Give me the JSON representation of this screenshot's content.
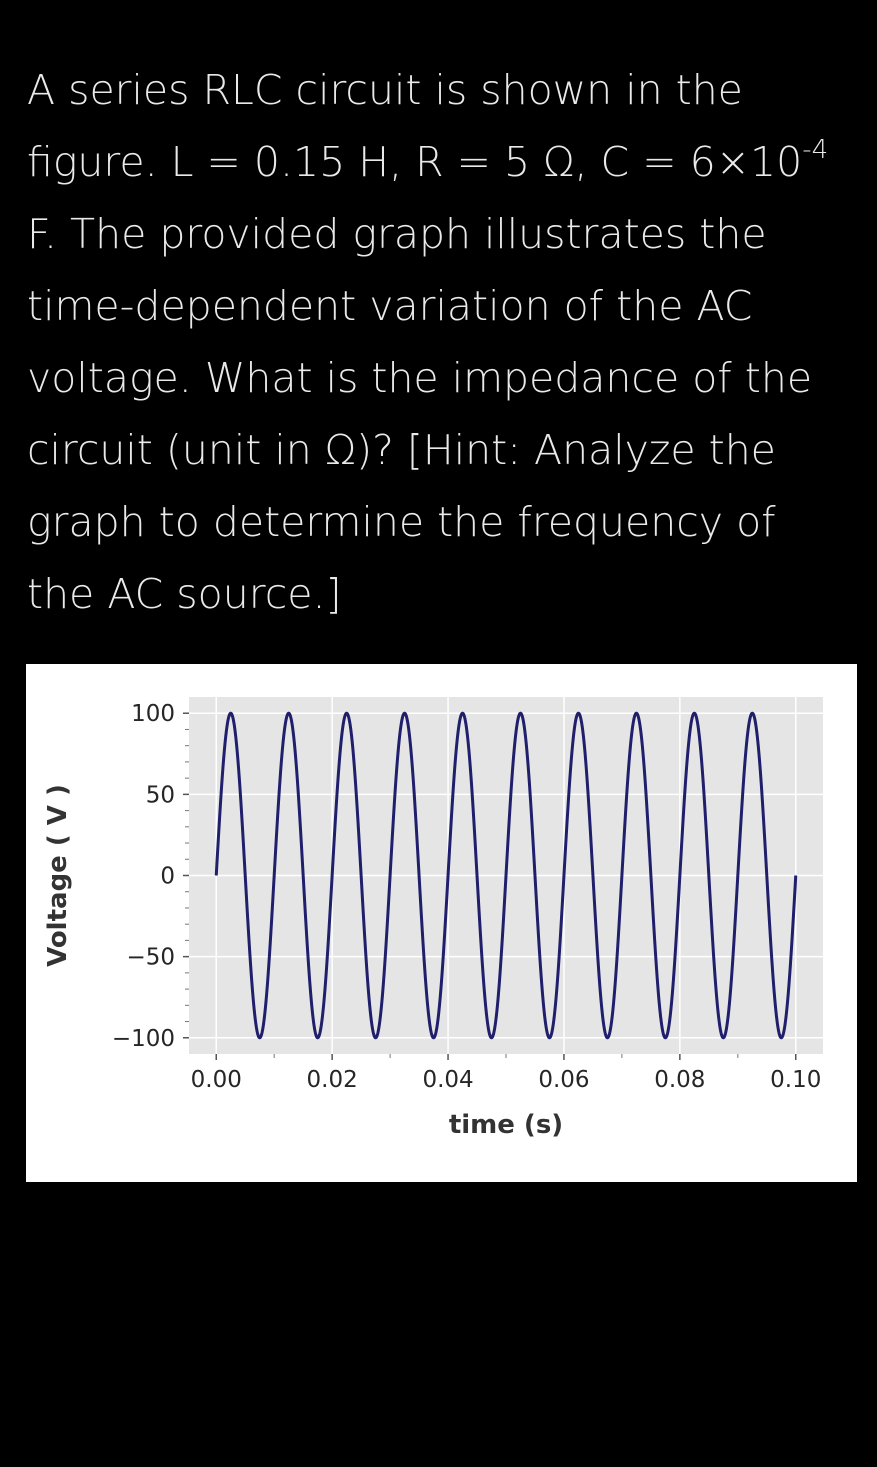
{
  "question": {
    "line1": "A series RLC circuit is shown in the",
    "line2_pre": "figure. L = 0.15 H, R = 5 Ω, C = 6×10",
    "line2_sup": "-4",
    "line3": "F. The provided graph illustrates the",
    "line4": "time-dependent variation of the AC",
    "line5": "voltage. What is the impedance of the",
    "line6": "circuit (unit in Ω)? [Hint: Analyze the",
    "line7": "graph to determine the frequency of",
    "line8": "the AC source.]"
  },
  "chart_data": {
    "type": "line",
    "title": "",
    "xlabel": "time (s)",
    "ylabel": "Voltage ( V )",
    "xlim": [
      -0.0047,
      0.1047
    ],
    "ylim": [
      -110,
      110
    ],
    "x_ticks": [
      0.0,
      0.02,
      0.04,
      0.06,
      0.08,
      0.1
    ],
    "x_tick_labels": [
      "0.00",
      "0.02",
      "0.04",
      "0.06",
      "0.08",
      "0.10"
    ],
    "y_ticks": [
      100,
      50,
      0,
      -50,
      -100
    ],
    "y_tick_labels": [
      "100",
      "50",
      "0",
      "−50",
      "−100"
    ],
    "grid": true,
    "background": "#e5e5e5",
    "line_color": "#1f1f6b",
    "series": [
      {
        "function": "sine",
        "amplitude": 100,
        "frequency_hz": 100,
        "phase": 0,
        "x_start": 0.0,
        "x_end": 0.1
      }
    ]
  }
}
